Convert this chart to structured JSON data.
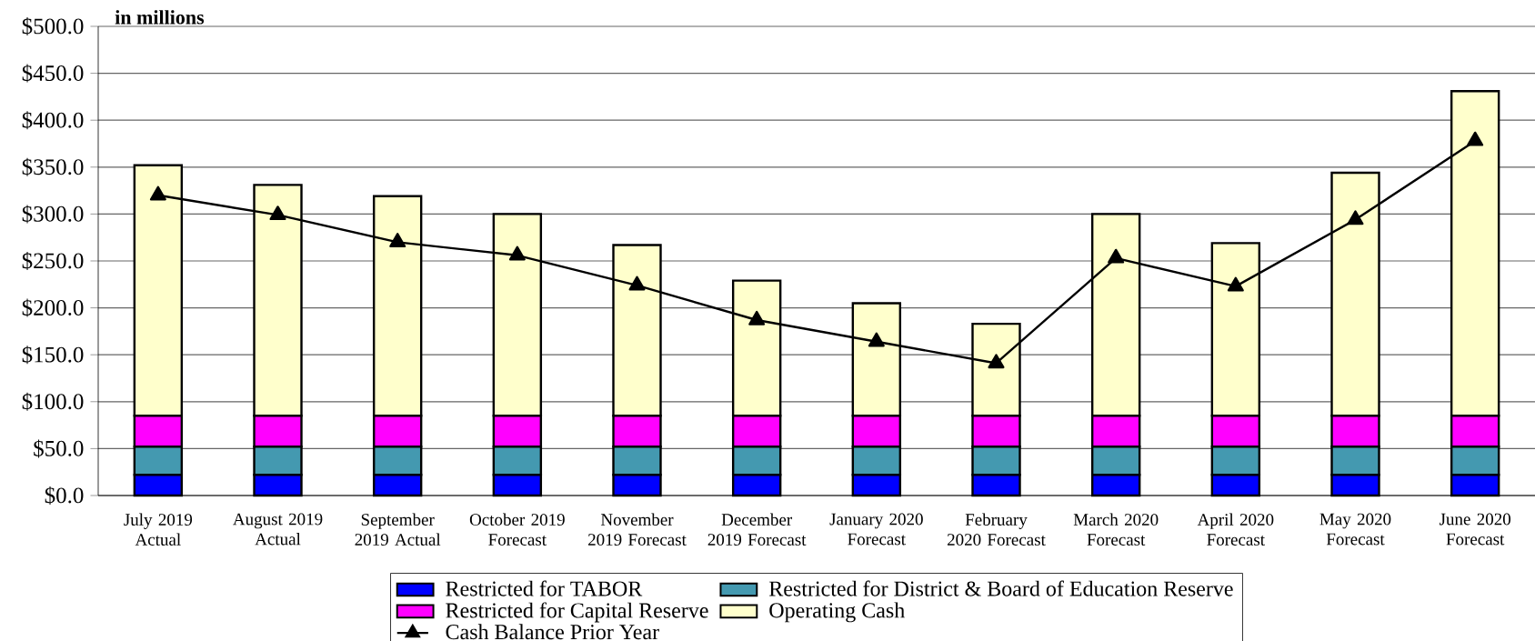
{
  "chart_data": {
    "type": "bar",
    "stacked": true,
    "annotations": [
      "in millions"
    ],
    "categories": [
      "July 2019 Actual",
      "August 2019 Actual",
      "September 2019 Actual",
      "October 2019 Forecast",
      "November 2019 Forecast",
      "December 2019 Forecast",
      "January 2020 Forecast",
      "February 2020 Forecast",
      "March 2020 Forecast",
      "April 2020 Forecast",
      "May 2020 Forecast",
      "June 2020 Forecast"
    ],
    "series": [
      {
        "name": "Restricted for TABOR",
        "color": "#0000ff",
        "values": [
          22,
          22,
          22,
          22,
          22,
          22,
          22,
          22,
          22,
          22,
          22,
          22
        ]
      },
      {
        "name": "Restricted for District & Board of Education Reserve",
        "color": "#4499b0",
        "values": [
          30,
          30,
          30,
          30,
          30,
          30,
          30,
          30,
          30,
          30,
          30,
          30
        ]
      },
      {
        "name": "Restricted for Capital Reserve",
        "color": "#ff00ff",
        "values": [
          33,
          33,
          33,
          33,
          33,
          33,
          33,
          33,
          33,
          33,
          33,
          33
        ]
      },
      {
        "name": "Operating Cash",
        "color": "#ffffcc",
        "values": [
          267,
          246,
          234,
          215,
          182,
          144,
          120,
          98,
          215,
          184,
          259,
          346
        ]
      },
      {
        "name": "Cash Balance Prior Year",
        "type": "line",
        "color": "#000000",
        "values": [
          320,
          299,
          270,
          256,
          224,
          187,
          164,
          141,
          253,
          223,
          294,
          378
        ]
      }
    ],
    "ylim": [
      0,
      500
    ],
    "yticks": [
      {
        "value": 0,
        "label": "$0.0"
      },
      {
        "value": 50,
        "label": "$50.0"
      },
      {
        "value": 100,
        "label": "$100.0"
      },
      {
        "value": 150,
        "label": "$150.0"
      },
      {
        "value": 200,
        "label": "$200.0"
      },
      {
        "value": 250,
        "label": "$250.0"
      },
      {
        "value": 300,
        "label": "$300.0"
      },
      {
        "value": 350,
        "label": "$350.0"
      },
      {
        "value": 400,
        "label": "$400.0"
      },
      {
        "value": 450,
        "label": "$450.0"
      },
      {
        "value": 500,
        "label": "$500.0"
      }
    ],
    "grid": "y",
    "legend": "bottom",
    "marker": "triangle"
  }
}
